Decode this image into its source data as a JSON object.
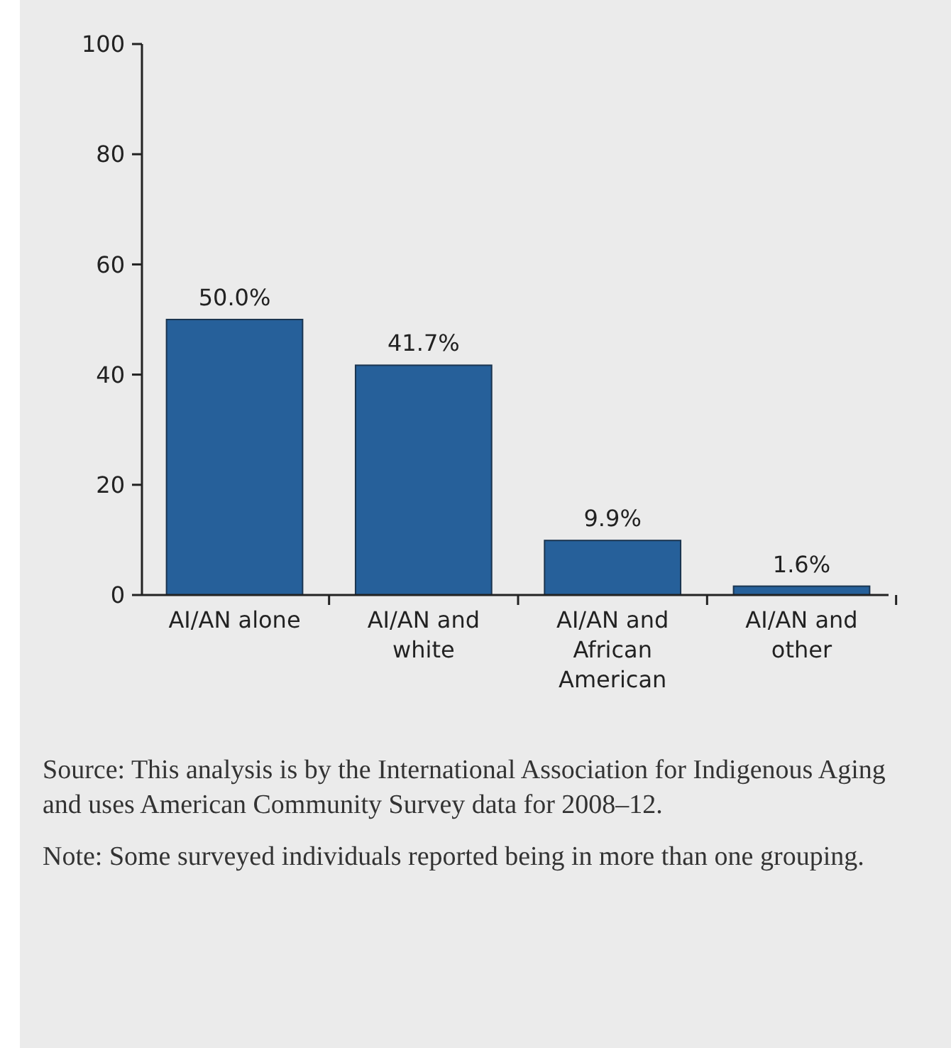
{
  "chart_data": {
    "type": "bar",
    "categories": [
      "AI/AN alone",
      "AI/AN and white",
      "AI/AN and African American",
      "AI/AN and other"
    ],
    "values": [
      50.0,
      41.7,
      9.9,
      1.6
    ],
    "value_labels": [
      "50.0%",
      "41.7%",
      "9.9%",
      "1.6%"
    ],
    "color": "#26609a",
    "ylim": [
      0,
      100
    ],
    "yticks": [
      0,
      20,
      40,
      60,
      80,
      100
    ],
    "grid": false,
    "annotations": [
      "Source: This analysis is by the International Association for Indigenous Aging and uses American Community Survey data for 2008–12.",
      "Note: Some surveyed individuals reported being in more than one grouping."
    ]
  }
}
